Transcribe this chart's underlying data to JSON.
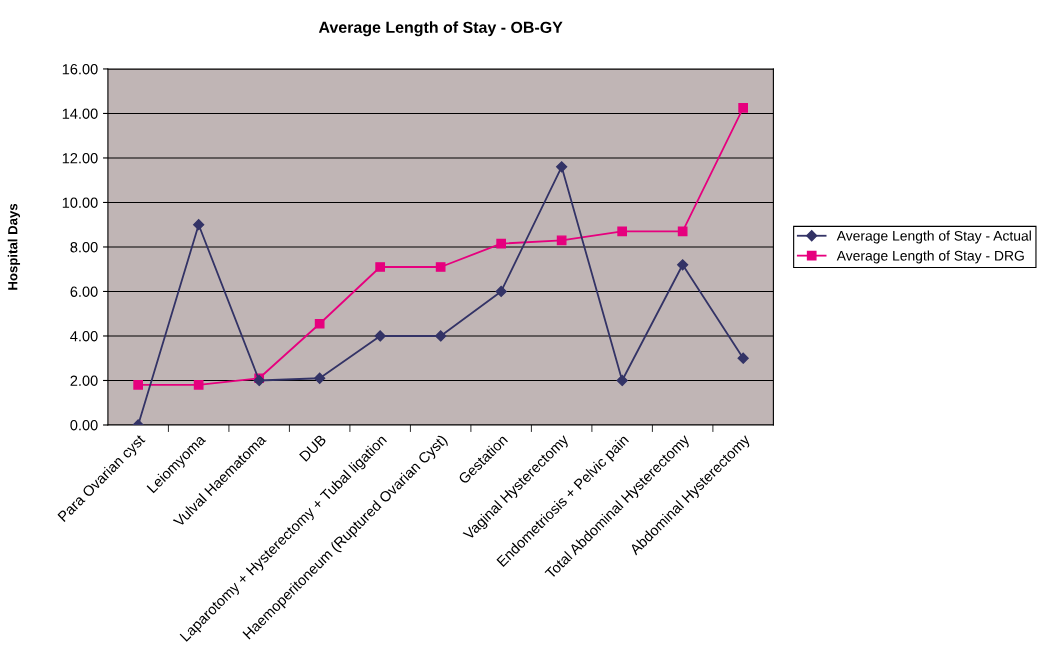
{
  "chart_data": {
    "type": "line",
    "title": "Average Length of Stay - OB-GY",
    "ylabel": "Hospital Days",
    "categories": [
      "Para Ovarian cyst",
      "Leiomyoma",
      "Vulval Haematoma",
      "DUB",
      "Laparotomy + Hysterectomy + Tubal ligation",
      "Haemoperitoneum (Ruptured Ovarian Cyst)",
      "Gestation",
      "Vaginal Hysterectomy",
      "Endometriosis + Pelvic pain",
      "Total Abdominal Hysterectomy",
      "Abdominal Hysterectomy"
    ],
    "series": [
      {
        "name": "Average Length of Stay - Actual",
        "color": "#333366",
        "marker": "diamond",
        "values": [
          0,
          9,
          2,
          2.1,
          4,
          4,
          6,
          11.6,
          2,
          7.2,
          3
        ]
      },
      {
        "name": "Average Length of Stay - DRG",
        "color": "#e6007e",
        "marker": "square",
        "values": [
          1.8,
          1.8,
          2.1,
          4.55,
          7.1,
          7.1,
          8.15,
          8.3,
          8.7,
          8.7,
          14.25
        ]
      }
    ],
    "ylim": [
      0,
      16
    ],
    "yticks": [
      {
        "value": 0,
        "label": "0.00"
      },
      {
        "value": 2,
        "label": "2.00"
      },
      {
        "value": 4,
        "label": "4.00"
      },
      {
        "value": 6,
        "label": "6.00"
      },
      {
        "value": 8,
        "label": "8.00"
      },
      {
        "value": 10,
        "label": "10.00"
      },
      {
        "value": 12,
        "label": "12.00"
      },
      {
        "value": 14,
        "label": "14.00"
      },
      {
        "value": 16,
        "label": "16.00"
      }
    ],
    "grid": "y",
    "legend": "right"
  }
}
